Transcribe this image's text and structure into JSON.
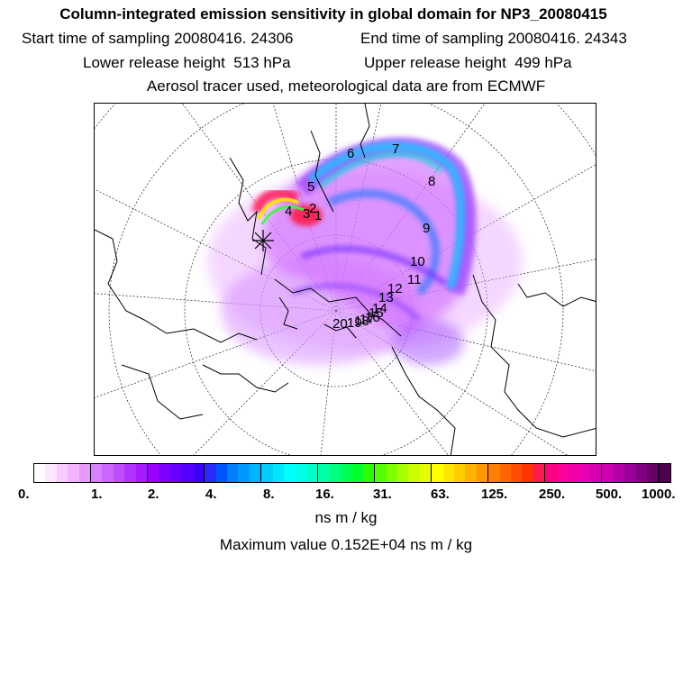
{
  "header": {
    "title": "Column-integrated emission sensitivity in global domain for NP3_20080415",
    "start_label": "Start time of sampling 20080416. 24306",
    "end_label": "End time of sampling 20080416. 24343",
    "lower_label": "Lower release height  513 hPa",
    "upper_label": "Upper release height  499 hPa",
    "tracer_line": "Aerosol tracer used, meteorological data are from ECMWF"
  },
  "map": {
    "projection": "polar stereographic (north pole)",
    "day_markers": [
      "1",
      "2",
      "3",
      "4",
      "5",
      "6",
      "7",
      "8",
      "9",
      "10",
      "11",
      "12",
      "13",
      "14",
      "15",
      "16",
      "17",
      "18",
      "19",
      "20"
    ],
    "release_marker": "release-point-x",
    "max_value_ns_m_per_kg": 1520
  },
  "colorbar": {
    "colors": [
      "#ffffff",
      "#fce6ff",
      "#f7ccff",
      "#f2b3ff",
      "#e699ff",
      "#d980ff",
      "#cc66ff",
      "#bf4dff",
      "#b233ff",
      "#a61aff",
      "#9900ff",
      "#8000ff",
      "#6a00ff",
      "#5500ff",
      "#4000ff",
      "#2b2bff",
      "#0055ff",
      "#0080ff",
      "#0099ff",
      "#00b3ff",
      "#00ccff",
      "#00e6ff",
      "#00ffff",
      "#00ffe6",
      "#00ffcc",
      "#00ffa6",
      "#00ff80",
      "#00ff55",
      "#00ff2b",
      "#2bff00",
      "#55ff00",
      "#80ff00",
      "#a6ff00",
      "#ccff00",
      "#e6ff00",
      "#ffff00",
      "#ffe600",
      "#ffcc00",
      "#ffb300",
      "#ff9900",
      "#ff8000",
      "#ff6600",
      "#ff4d00",
      "#ff3300",
      "#ff1a4d",
      "#ff0080",
      "#ff0099",
      "#f200a6",
      "#e600b3",
      "#d900b3",
      "#cc00b3",
      "#b300a6",
      "#990099",
      "#800080",
      "#660066",
      "#4d004d"
    ],
    "tick_labels": [
      "0.",
      "1.",
      "2.",
      "4.",
      "8.",
      "16.",
      "31.",
      "63.",
      "125.",
      "250.",
      "500.",
      "1000."
    ],
    "unit": "ns m / kg"
  },
  "footer": {
    "max_text": "Maximum value  0.152E+04 ns m / kg"
  }
}
